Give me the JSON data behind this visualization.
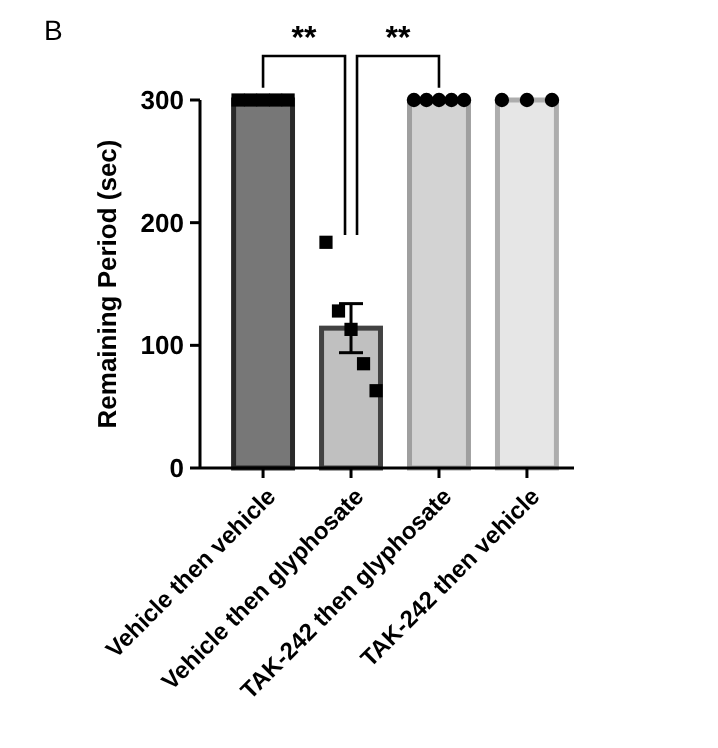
{
  "chart_data": {
    "type": "bar",
    "ylabel": "Remaining Period (sec)",
    "categories": [
      "Vehicle then vehicle",
      "Vehicle then glyphosate",
      "TAK-242 then glyphosate",
      "TAK-242 then vehicle"
    ],
    "series": [
      {
        "values": [
          300,
          114,
          300,
          300
        ],
        "colors": [
          "#777777",
          "#c0c0c0",
          "#d3d3d3",
          "#e6e6e6"
        ],
        "errors": [
          null,
          20,
          null,
          null
        ]
      },
      {
        "type": "scatter",
        "marker": "square",
        "color": "#000000",
        "x": [
          "Vehicle then vehicle",
          "Vehicle then vehicle",
          "Vehicle then vehicle",
          "Vehicle then vehicle",
          "Vehicle then vehicle",
          "Vehicle then glyphosate",
          "Vehicle then glyphosate",
          "Vehicle then glyphosate",
          "Vehicle then glyphosate",
          "Vehicle then glyphosate"
        ],
        "values": [
          300,
          300,
          300,
          300,
          300,
          184,
          128,
          113,
          85,
          63
        ]
      },
      {
        "type": "scatter",
        "marker": "circle",
        "color": "#000000",
        "x": [
          "TAK-242 then glyphosate",
          "TAK-242 then glyphosate",
          "TAK-242 then glyphosate",
          "TAK-242 then glyphosate",
          "TAK-242 then glyphosate",
          "TAK-242 then vehicle",
          "TAK-242 then vehicle",
          "TAK-242 then vehicle"
        ],
        "values": [
          300,
          300,
          300,
          300,
          300,
          300,
          300,
          300
        ]
      }
    ],
    "ylim": [
      0,
      300
    ],
    "yticks": [
      0,
      100,
      200,
      300
    ],
    "grid": false,
    "annotations": [
      "B",
      "**",
      "**"
    ]
  }
}
